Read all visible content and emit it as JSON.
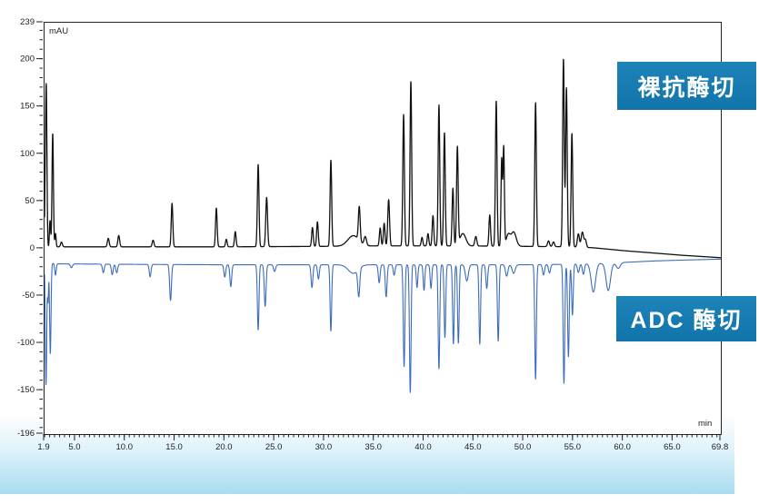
{
  "labels": {
    "naked_antibody": "裸抗酶切",
    "adc": "ADC 酶切"
  },
  "colors": {
    "tag_background": "#1579b1",
    "band_top": "#fdfeff",
    "band_bottom": "#a9dcf0",
    "frame": "#222222",
    "black_trace": "#111111",
    "blue_trace": "#3c6cbe"
  },
  "chart_data": {
    "type": "line",
    "title": "",
    "xlabel": "min",
    "ylabel": "mAU",
    "x_range": [
      1.9,
      69.8
    ],
    "y_range": [
      -196,
      239
    ],
    "grid": false,
    "legend_position": "none",
    "x_major_ticks": [
      1.9,
      5,
      10,
      15,
      20,
      25,
      30,
      35,
      40,
      45,
      50,
      55,
      60,
      65,
      69.8
    ],
    "x_major_tick_labels": [
      "1.9",
      "5.0",
      "10.0",
      "15.0",
      "20.0",
      "25.0",
      "30.0",
      "35.0",
      "40.0",
      "45.0",
      "50.0",
      "55.0",
      "60.0",
      "65.0",
      "69.8"
    ],
    "x_minor_step": 0.5,
    "y_major_ticks": [
      239,
      200,
      150,
      100,
      50,
      0,
      -50,
      -100,
      -150,
      -196
    ],
    "y_major_tick_labels": [
      "239",
      "200",
      "150",
      "100",
      "50",
      "0",
      "-50",
      "-100",
      "-150",
      "-196"
    ],
    "y_minor_step": 10,
    "series": [
      {
        "name": "裸抗酶切",
        "color": "#111111",
        "stroke_width": 1.3,
        "baseline": [
          [
            1.9,
            0
          ],
          [
            2.5,
            2
          ],
          [
            10,
            2
          ],
          [
            20,
            2
          ],
          [
            30,
            2.5
          ],
          [
            35,
            3
          ],
          [
            44,
            3
          ],
          [
            50,
            2.5
          ],
          [
            55,
            2
          ],
          [
            57,
            1
          ],
          [
            60,
            -2
          ],
          [
            63,
            -4.5
          ],
          [
            66,
            -7
          ],
          [
            69.8,
            -9.5
          ]
        ],
        "peaks": [
          [
            1.95,
            40,
            0.05
          ],
          [
            2.07,
            172,
            0.07
          ],
          [
            2.45,
            28,
            0.06
          ],
          [
            2.72,
            120,
            0.07
          ],
          [
            3.0,
            14,
            0.06
          ],
          [
            3.6,
            5,
            0.09
          ],
          [
            8.3,
            9,
            0.09
          ],
          [
            9.35,
            12,
            0.09
          ],
          [
            12.8,
            7,
            0.09
          ],
          [
            14.7,
            46,
            0.08
          ],
          [
            19.15,
            41,
            0.08
          ],
          [
            20.15,
            8,
            0.08
          ],
          [
            21.05,
            16,
            0.08
          ],
          [
            23.35,
            87,
            0.08
          ],
          [
            24.2,
            52,
            0.09
          ],
          [
            28.8,
            20,
            0.08
          ],
          [
            29.3,
            26,
            0.08
          ],
          [
            30.65,
            91,
            0.08
          ],
          [
            32.9,
            11,
            0.55
          ],
          [
            33.5,
            36,
            0.09
          ],
          [
            34.1,
            9,
            0.12
          ],
          [
            35.6,
            19,
            0.08
          ],
          [
            36.0,
            24,
            0.08
          ],
          [
            36.45,
            49,
            0.09
          ],
          [
            37.95,
            139,
            0.08
          ],
          [
            38.68,
            174,
            0.08
          ],
          [
            39.8,
            9,
            0.08
          ],
          [
            40.4,
            13,
            0.08
          ],
          [
            40.9,
            32,
            0.08
          ],
          [
            41.5,
            149,
            0.08
          ],
          [
            42.05,
            120,
            0.08
          ],
          [
            42.9,
            61,
            0.08
          ],
          [
            43.35,
            103,
            0.08
          ],
          [
            43.9,
            13,
            0.3
          ],
          [
            45.2,
            10,
            0.1
          ],
          [
            46.6,
            33,
            0.08
          ],
          [
            47.25,
            154,
            0.08
          ],
          [
            47.8,
            92,
            0.07
          ],
          [
            48.0,
            104,
            0.07
          ],
          [
            48.45,
            12,
            0.2
          ],
          [
            49.0,
            15,
            0.25
          ],
          [
            51.2,
            152,
            0.08
          ],
          [
            52.5,
            6,
            0.1
          ],
          [
            53.0,
            5,
            0.1
          ],
          [
            54.0,
            199,
            0.08
          ],
          [
            54.3,
            168,
            0.08
          ],
          [
            54.85,
            120,
            0.08
          ],
          [
            55.5,
            14,
            0.1
          ],
          [
            55.9,
            16,
            0.12
          ],
          [
            56.2,
            8,
            0.1
          ]
        ]
      },
      {
        "name": "ADC 酶切",
        "color": "#3c6cbe",
        "stroke_width": 1.1,
        "baseline": [
          [
            1.9,
            -14
          ],
          [
            3,
            -16
          ],
          [
            10,
            -16.5
          ],
          [
            20,
            -17
          ],
          [
            40,
            -17
          ],
          [
            50,
            -17
          ],
          [
            54,
            -16.5
          ],
          [
            56,
            -16
          ],
          [
            58,
            -15.5
          ],
          [
            60,
            -14.5
          ],
          [
            63,
            -13
          ],
          [
            66,
            -12
          ],
          [
            69.8,
            -11
          ]
        ],
        "peaks": [
          [
            2.05,
            -130,
            0.07
          ],
          [
            2.25,
            -40,
            0.05
          ],
          [
            2.48,
            -96,
            0.07
          ],
          [
            3.0,
            -12,
            0.07
          ],
          [
            4.6,
            -4,
            0.1
          ],
          [
            7.8,
            -9,
            0.09
          ],
          [
            8.7,
            -11,
            0.09
          ],
          [
            9.15,
            -9,
            0.09
          ],
          [
            12.5,
            -13,
            0.09
          ],
          [
            14.55,
            -38,
            0.09
          ],
          [
            20.0,
            -13,
            0.09
          ],
          [
            20.6,
            -23,
            0.09
          ],
          [
            23.35,
            -69,
            0.08
          ],
          [
            24.05,
            -44,
            0.09
          ],
          [
            25.0,
            -7,
            0.1
          ],
          [
            28.75,
            -24,
            0.09
          ],
          [
            29.4,
            -15,
            0.09
          ],
          [
            30.65,
            -70,
            0.08
          ],
          [
            32.9,
            -9,
            0.5
          ],
          [
            33.45,
            -29,
            0.1
          ],
          [
            35.5,
            -19,
            0.09
          ],
          [
            36.2,
            -34,
            0.09
          ],
          [
            37.0,
            -11,
            0.09
          ],
          [
            38.0,
            -108,
            0.08
          ],
          [
            38.62,
            -135,
            0.08
          ],
          [
            39.3,
            -24,
            0.08
          ],
          [
            40.0,
            -27,
            0.08
          ],
          [
            40.7,
            -25,
            0.08
          ],
          [
            41.5,
            -110,
            0.08
          ],
          [
            42.1,
            -77,
            0.08
          ],
          [
            42.95,
            -84,
            0.08
          ],
          [
            43.45,
            -83,
            0.08
          ],
          [
            44.3,
            -17,
            0.15
          ],
          [
            45.6,
            -84,
            0.08
          ],
          [
            46.3,
            -25,
            0.09
          ],
          [
            47.45,
            -81,
            0.08
          ],
          [
            48.3,
            -12,
            0.12
          ],
          [
            49.0,
            -9,
            0.15
          ],
          [
            51.2,
            -121,
            0.08
          ],
          [
            52.0,
            -11,
            0.1
          ],
          [
            52.6,
            -9,
            0.1
          ],
          [
            54.05,
            -126,
            0.08
          ],
          [
            54.5,
            -98,
            0.08
          ],
          [
            54.9,
            -54,
            0.08
          ],
          [
            55.5,
            -9,
            0.1
          ],
          [
            56.0,
            -11,
            0.1
          ],
          [
            57.0,
            -30,
            0.22
          ],
          [
            58.5,
            -29,
            0.22
          ],
          [
            59.5,
            -6,
            0.2
          ]
        ]
      }
    ]
  }
}
